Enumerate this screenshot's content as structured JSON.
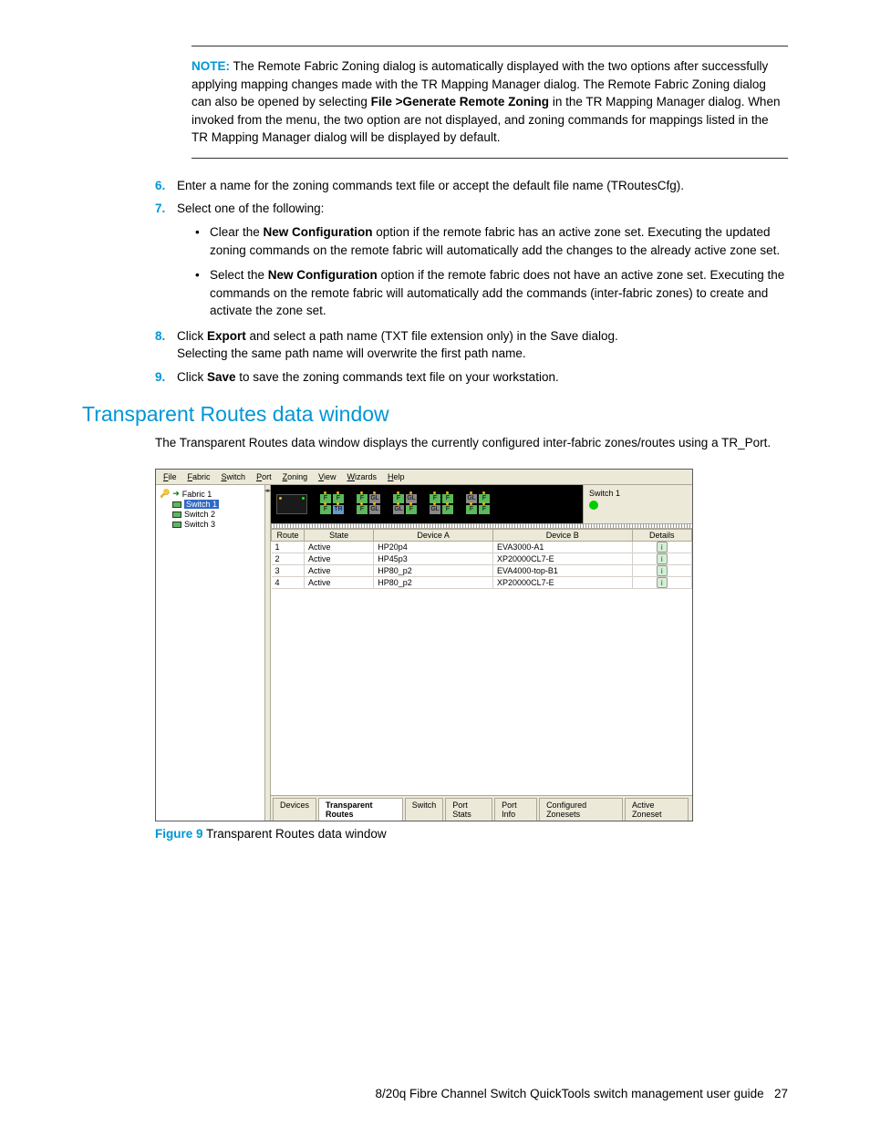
{
  "note": {
    "label": "NOTE:",
    "body_before": "The Remote Fabric Zoning dialog is automatically displayed with the two options after successfully applying mapping changes made with the TR Mapping Manager dialog. The Remote Fabric Zoning dialog can also be opened by selecting ",
    "bold_menu": "File >Generate Remote Zoning",
    "body_after": " in the TR Mapping Manager dialog. When invoked from the menu, the two option are not displayed, and zoning commands for mappings listed in the TR Mapping Manager dialog will be displayed by default."
  },
  "steps": {
    "s6": "Enter a name for the zoning commands text file or accept the default file name (TRoutesCfg).",
    "s7": "Select one of the following:",
    "s7a_pre": "Clear the ",
    "s7a_bold": "New Configuration",
    "s7a_post": " option if the remote fabric has an active zone set. Executing the updated zoning commands on the remote fabric will automatically add the changes to the already active zone set.",
    "s7b_pre": "Select the ",
    "s7b_bold": "New Configuration",
    "s7b_post": " option if the remote fabric does not have an active zone set. Executing the commands on the remote fabric will automatically add the commands (inter-fabric zones) to create and activate the zone set.",
    "s8_pre": "Click ",
    "s8_bold": "Export",
    "s8_post": " and select a path name (TXT file extension only) in the Save dialog.",
    "s8_line2": "Selecting the same path name will overwrite the first path name.",
    "s9_pre": "Click ",
    "s9_bold": "Save",
    "s9_post": " to save the zoning commands text file on your workstation."
  },
  "section": {
    "title": "Transparent Routes data window",
    "intro": "The Transparent Routes data window displays the currently configured inter-fabric zones/routes using a TR_Port."
  },
  "app": {
    "menus": [
      "File",
      "Fabric",
      "Switch",
      "Port",
      "Zoning",
      "View",
      "Wizards",
      "Help"
    ],
    "tree": {
      "fabric": "Fabric 1",
      "switches": [
        "Switch 1",
        "Switch 2",
        "Switch 3"
      ],
      "selected_index": 0,
      "colors": [
        "#5cb85c",
        "#5cb85c",
        "#5cb85c"
      ]
    },
    "status": {
      "label": "Switch 1",
      "led_color": "#00cc00"
    },
    "port_strip": {
      "background": "#000000",
      "groups": [
        [
          [
            "F",
            "F"
          ],
          [
            "F",
            "TR"
          ]
        ],
        [
          [
            "F",
            "GL"
          ],
          [
            "F",
            "GL"
          ]
        ],
        [
          [
            "F",
            "GL"
          ],
          [
            "GL",
            "F"
          ]
        ],
        [
          [
            "F",
            "F"
          ],
          [
            "GL",
            "F"
          ]
        ],
        [
          [
            "GL",
            "F"
          ],
          [
            "F",
            "F"
          ]
        ]
      ]
    },
    "table": {
      "columns": [
        "Route",
        "State",
        "Device A",
        "Device B",
        "Details"
      ],
      "col_widths": [
        "30px",
        "70px",
        "120px",
        "140px",
        "60px"
      ],
      "rows": [
        [
          "1",
          "Active",
          "HP20p4",
          "EVA3000-A1"
        ],
        [
          "2",
          "Active",
          "HP45p3",
          "XP20000CL7-E"
        ],
        [
          "3",
          "Active",
          "HP80_p2",
          "EVA4000-top-B1"
        ],
        [
          "4",
          "Active",
          "HP80_p2",
          "XP20000CL7-E"
        ]
      ]
    },
    "tabs": [
      "Devices",
      "Transparent Routes",
      "Switch",
      "Port Stats",
      "Port Info",
      "Configured Zonesets",
      "Active Zoneset"
    ],
    "active_tab_index": 1
  },
  "figure": {
    "label": "Figure 9",
    "caption": " Transparent Routes data window"
  },
  "footer": {
    "text": "8/20q Fibre Channel Switch QuickTools switch management user guide",
    "page": "27"
  },
  "colors": {
    "accent": "#0096d6",
    "ui_bg": "#ece9d8",
    "ui_border": "#aca899"
  }
}
